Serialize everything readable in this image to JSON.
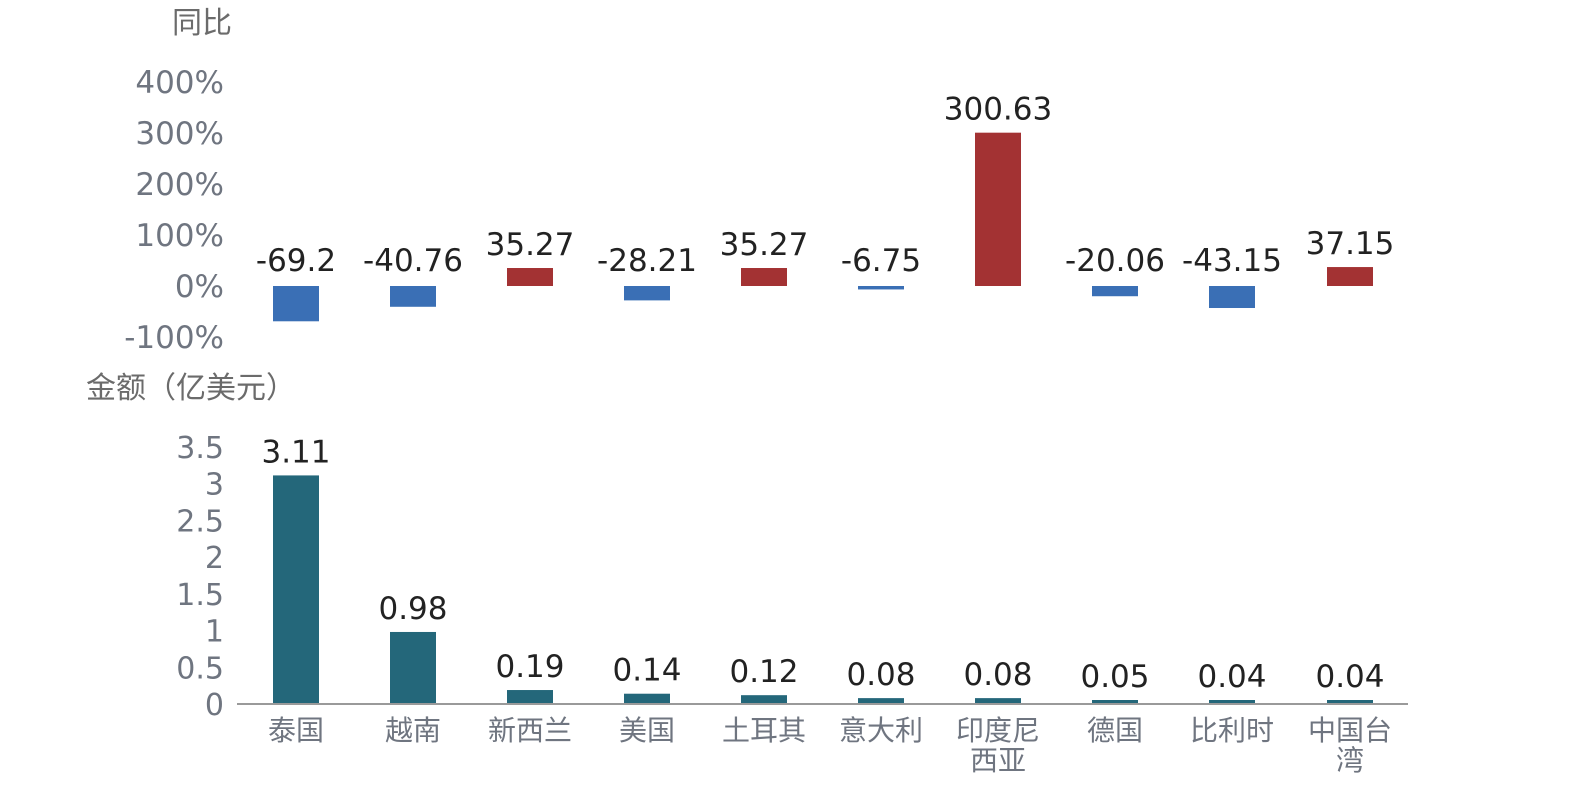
{
  "chart_data": [
    {
      "type": "bar",
      "ylabel": "同比",
      "categories": [
        "泰国",
        "越南",
        "新西兰",
        "美国",
        "土耳其",
        "意大利",
        "印度尼西亚",
        "德国",
        "比利时",
        "中国台湾"
      ],
      "values": [
        -69.2,
        -40.76,
        35.27,
        -28.21,
        35.27,
        -6.75,
        300.63,
        -20.06,
        -43.15,
        37.15
      ],
      "value_labels": [
        "-69.2",
        "-40.76",
        "35.27",
        "-28.21",
        "35.27",
        "-6.75",
        "300.63",
        "-20.06",
        "-43.15",
        "37.15"
      ],
      "yticks": [
        "400%",
        "300%",
        "200%",
        "100%",
        "0%",
        "-100%"
      ],
      "ylim": [
        -100,
        400
      ],
      "positive_color": "#a33233",
      "negative_color": "#3a6fb5"
    },
    {
      "type": "bar",
      "ylabel": "金额（亿美元）",
      "categories": [
        "泰国",
        "越南",
        "新西兰",
        "美国",
        "土耳其",
        "意大利",
        "印度尼西亚",
        "德国",
        "比利时",
        "中国台湾"
      ],
      "category_labels": [
        [
          "泰国"
        ],
        [
          "越南"
        ],
        [
          "新西兰"
        ],
        [
          "美国"
        ],
        [
          "土耳其"
        ],
        [
          "意大利"
        ],
        [
          "印度尼",
          "西亚"
        ],
        [
          "德国"
        ],
        [
          "比利时"
        ],
        [
          "中国台",
          "湾"
        ]
      ],
      "values": [
        3.11,
        0.98,
        0.19,
        0.14,
        0.12,
        0.08,
        0.08,
        0.05,
        0.04,
        0.04
      ],
      "value_labels": [
        "3.11",
        "0.98",
        "0.19",
        "0.14",
        "0.12",
        "0.08",
        "0.08",
        "0.05",
        "0.04",
        "0.04"
      ],
      "yticks": [
        "3.5",
        "3",
        "2.5",
        "2",
        "1.5",
        "1",
        "0.5",
        "0"
      ],
      "ylim": [
        0,
        3.5
      ],
      "bar_color": "#24677a",
      "axis_color": "#9a9a9a"
    }
  ]
}
